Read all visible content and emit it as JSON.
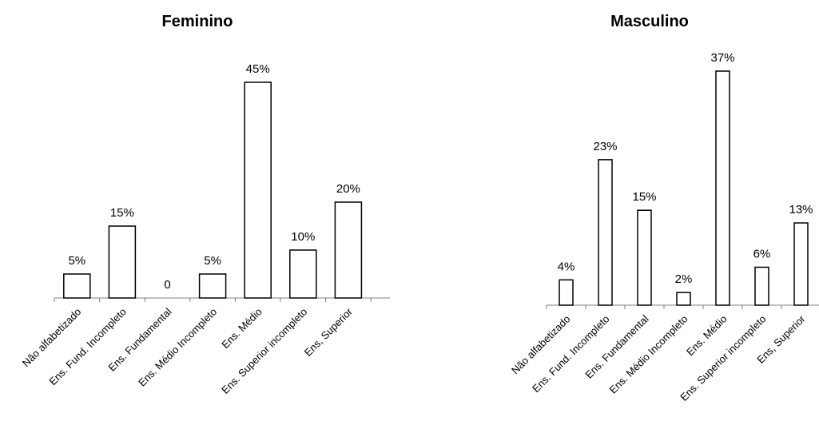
{
  "chart_data": [
    {
      "type": "bar",
      "title": "Feminino",
      "categories": [
        "Não alfabetizado",
        "Ens. Fund. Incompleto",
        "Ens. Fundamental",
        "Ens. Médio Incompleto",
        "Ens. Médio",
        "Ens. Superior incompleto",
        "Ens, Superior"
      ],
      "values": [
        5,
        15,
        0,
        5,
        45,
        10,
        20
      ],
      "data_labels": [
        "5%",
        "15%",
        "0",
        "5%",
        "45%",
        "10%",
        "20%"
      ],
      "unit": "%",
      "ylim": [
        0,
        45
      ],
      "grid": false,
      "legend": "none",
      "bar_fill": "#ffffff",
      "bar_stroke": "#000000"
    },
    {
      "type": "bar",
      "title": "Masculino",
      "categories": [
        "Não alfabetizado",
        "Ens. Fund. Incompleto",
        "Ens. Fundamental",
        "Ens. Médio Incompleto",
        "Ens. Médio",
        "Ens. Superior incompleto",
        "Ens, Superior"
      ],
      "values": [
        4,
        23,
        15,
        2,
        37,
        6,
        13
      ],
      "data_labels": [
        "4%",
        "23%",
        "15%",
        "2%",
        "37%",
        "6%",
        "13%"
      ],
      "unit": "%",
      "ylim": [
        0,
        37
      ],
      "grid": false,
      "legend": "none",
      "bar_fill": "#ffffff",
      "bar_stroke": "#000000"
    }
  ]
}
